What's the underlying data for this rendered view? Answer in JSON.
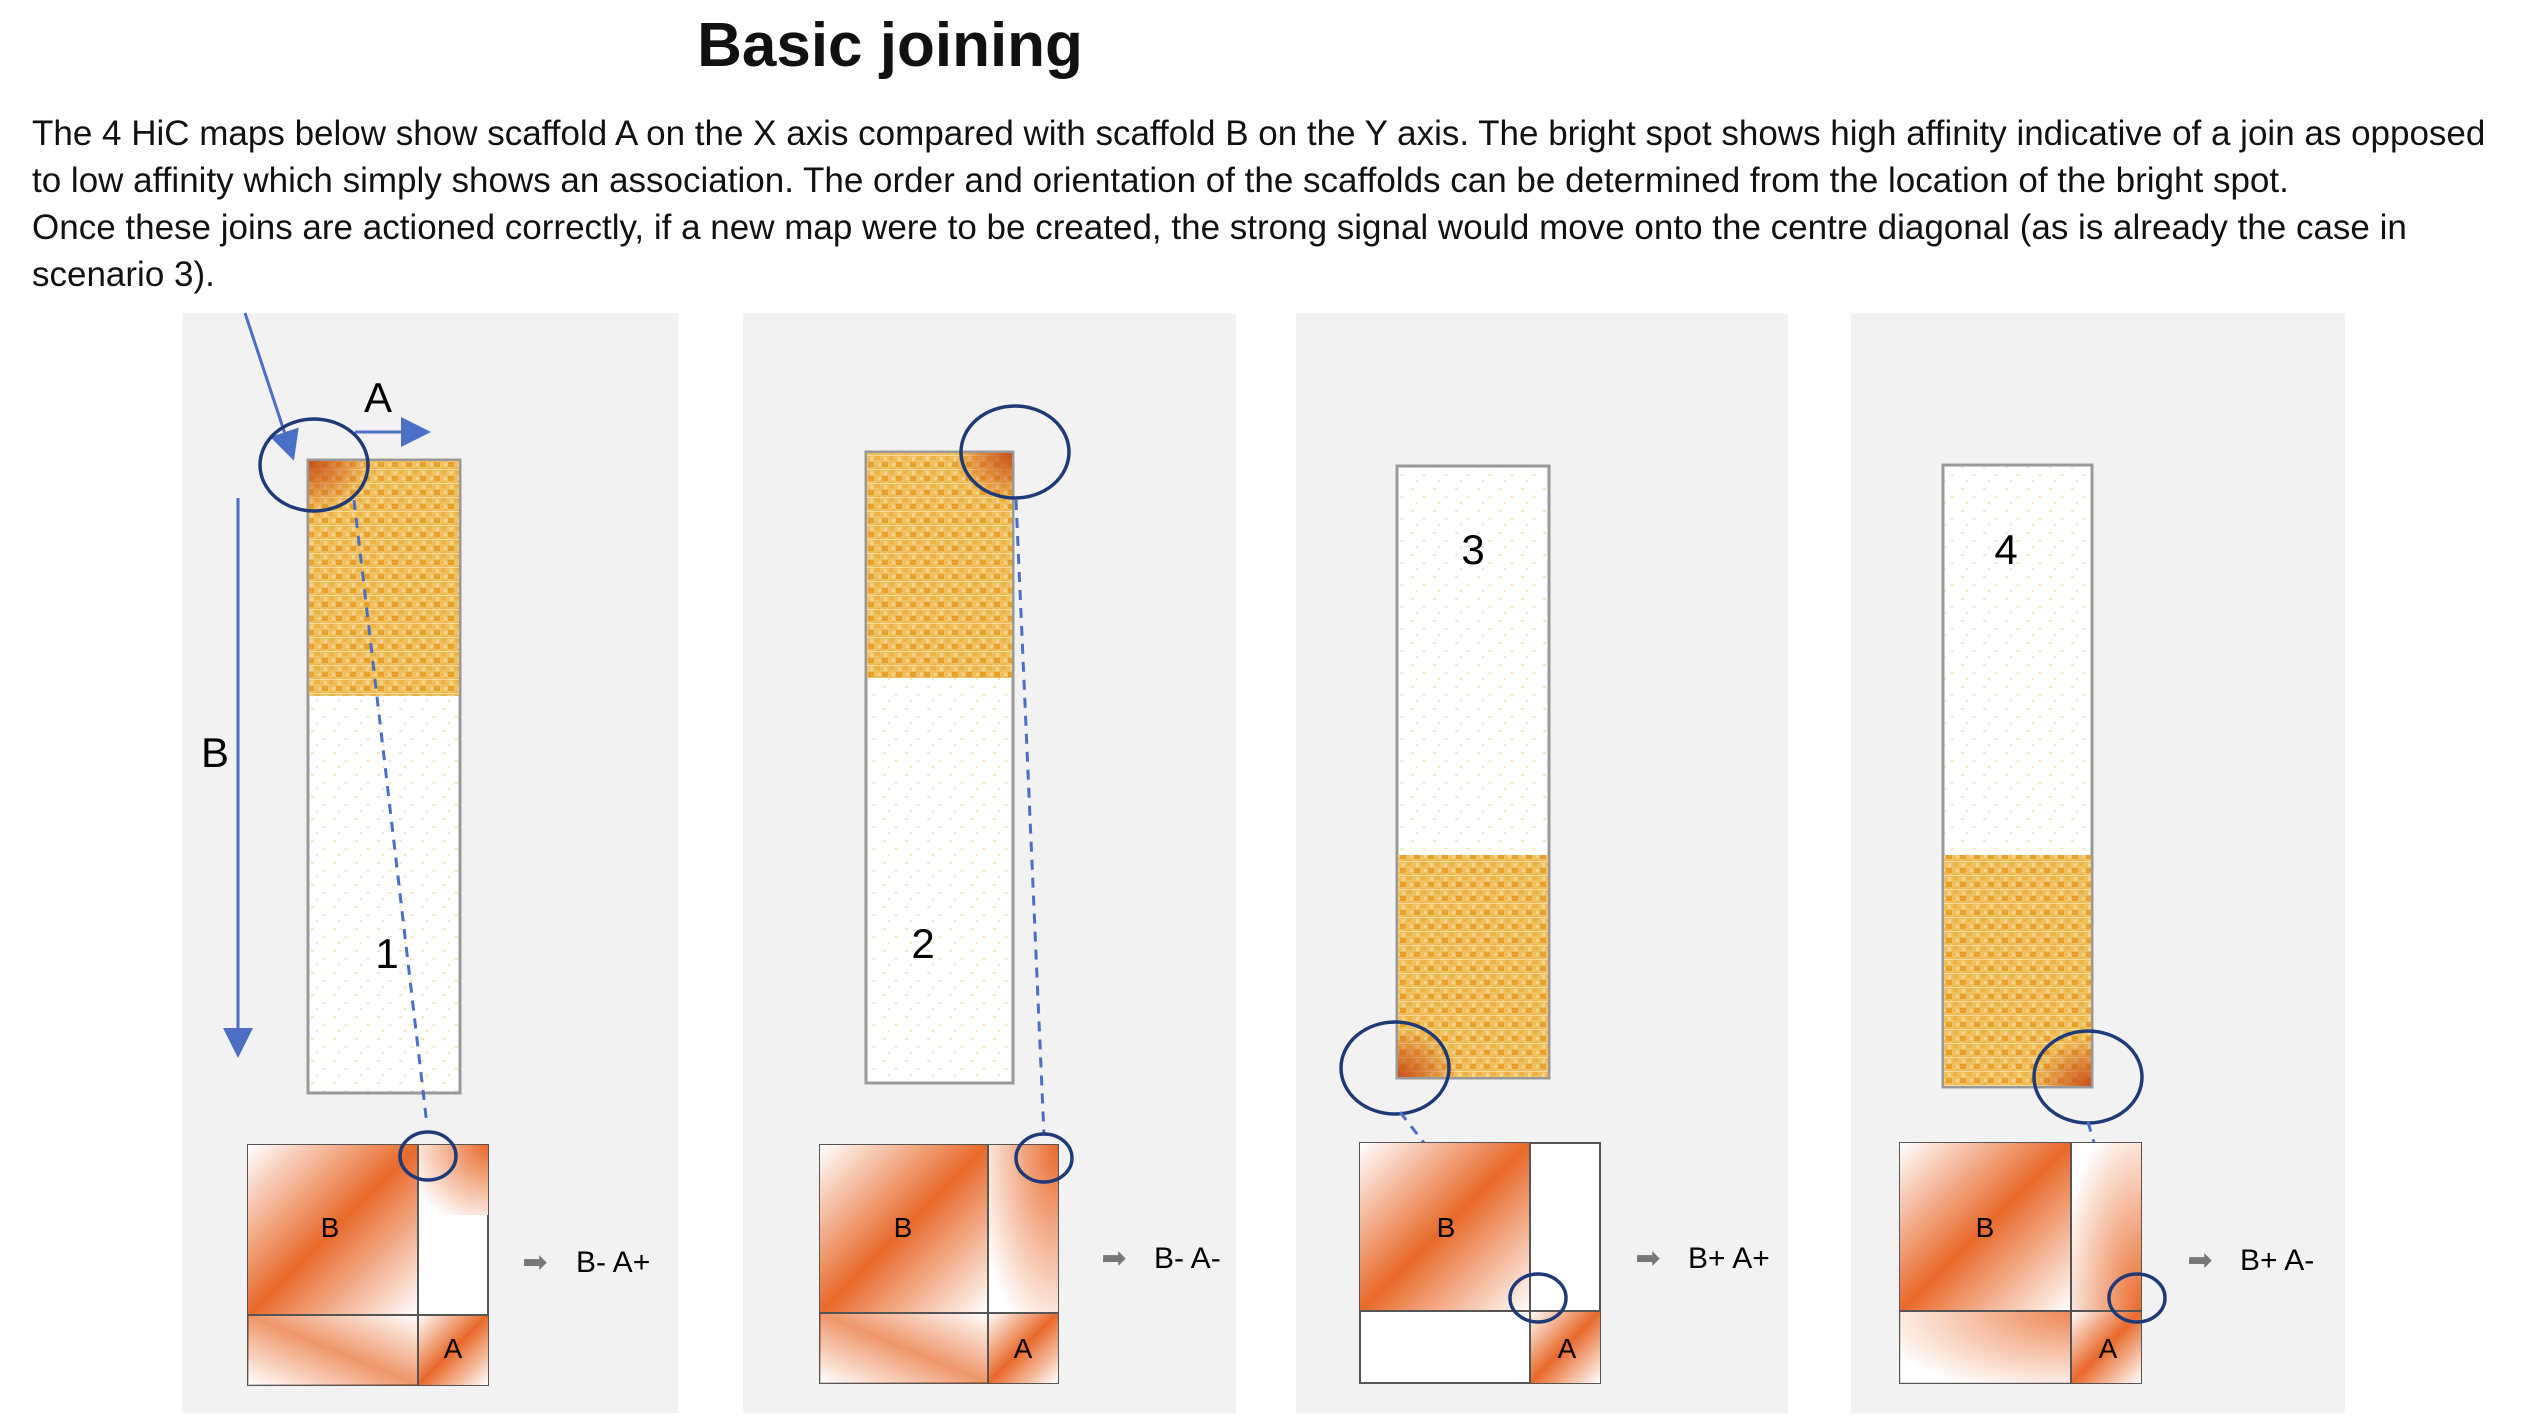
{
  "title": "Basic joining",
  "description": [
    "The 4 HiC maps below show scaffold A on the X axis compared with scaffold B on the Y axis.  The bright spot shows high affinity indicative of a join as opposed",
    "to low affinity which simply shows an association.  The order and orientation of the scaffolds can be determined from the location of the bright spot.",
    "Once these joins are actioned correctly, if a new map were to be created,  the strong signal would move onto the centre diagonal (as is already the case in",
    "scenario 3)."
  ],
  "axis_labels": {
    "x": "A",
    "y": "B"
  },
  "colors": {
    "heat": "#e8a02a",
    "diag": "#e8692a",
    "circle": "#1f3a78",
    "arrow": "#4a6fc4",
    "panel_bg": "#f2f2f2",
    "result_arrow": "#777777"
  },
  "scenarios": [
    {
      "number": "1",
      "signal": "top-left",
      "band": "top",
      "square_b": "B",
      "square_a": "A",
      "join_circle": "top-right",
      "result": "B- A+"
    },
    {
      "number": "2",
      "signal": "top-right",
      "band": "top",
      "square_b": "B",
      "square_a": "A",
      "join_circle": "top-right",
      "result": "B- A-"
    },
    {
      "number": "3",
      "signal": "bottom-left",
      "band": "bottom",
      "square_b": "B",
      "square_a": "A",
      "join_circle": "bottom-left",
      "result": "B+ A+"
    },
    {
      "number": "4",
      "signal": "bottom-right",
      "band": "bottom",
      "square_b": "B",
      "square_a": "A",
      "join_circle": "bottom-left",
      "result": "B+ A-"
    }
  ]
}
